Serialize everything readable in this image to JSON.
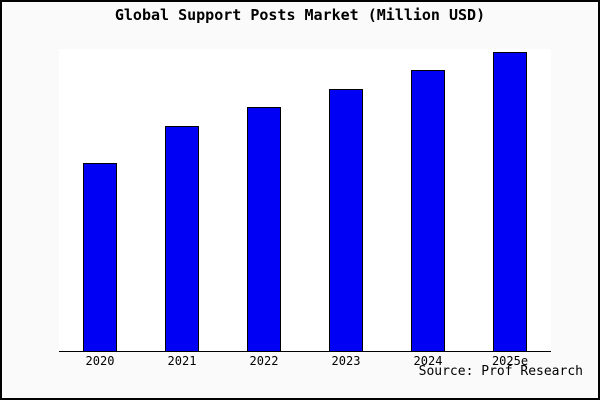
{
  "chart_data": {
    "type": "bar",
    "title": "Global Support Posts Market (Million USD)",
    "xlabel": "",
    "ylabel": "",
    "categories": [
      "2020",
      "2021",
      "2022",
      "2023",
      "2024",
      "2025e"
    ],
    "bar_height_pct_of_plot": [
      62.3,
      74.5,
      80.8,
      86.8,
      93.1,
      99.0
    ],
    "values_estimated_relative_units": [
      10,
      12,
      13,
      14,
      15,
      16
    ],
    "y_axis_ticks_visible": false,
    "grid": false,
    "legend": false,
    "source": "Source: Prof Research",
    "colors": {
      "bar_fill": "#0000f5",
      "bar_border": "#000000",
      "plot_background": "#ffffff",
      "page_background": "#fafafa",
      "frame_border": "#000000",
      "text": "#000000"
    }
  }
}
